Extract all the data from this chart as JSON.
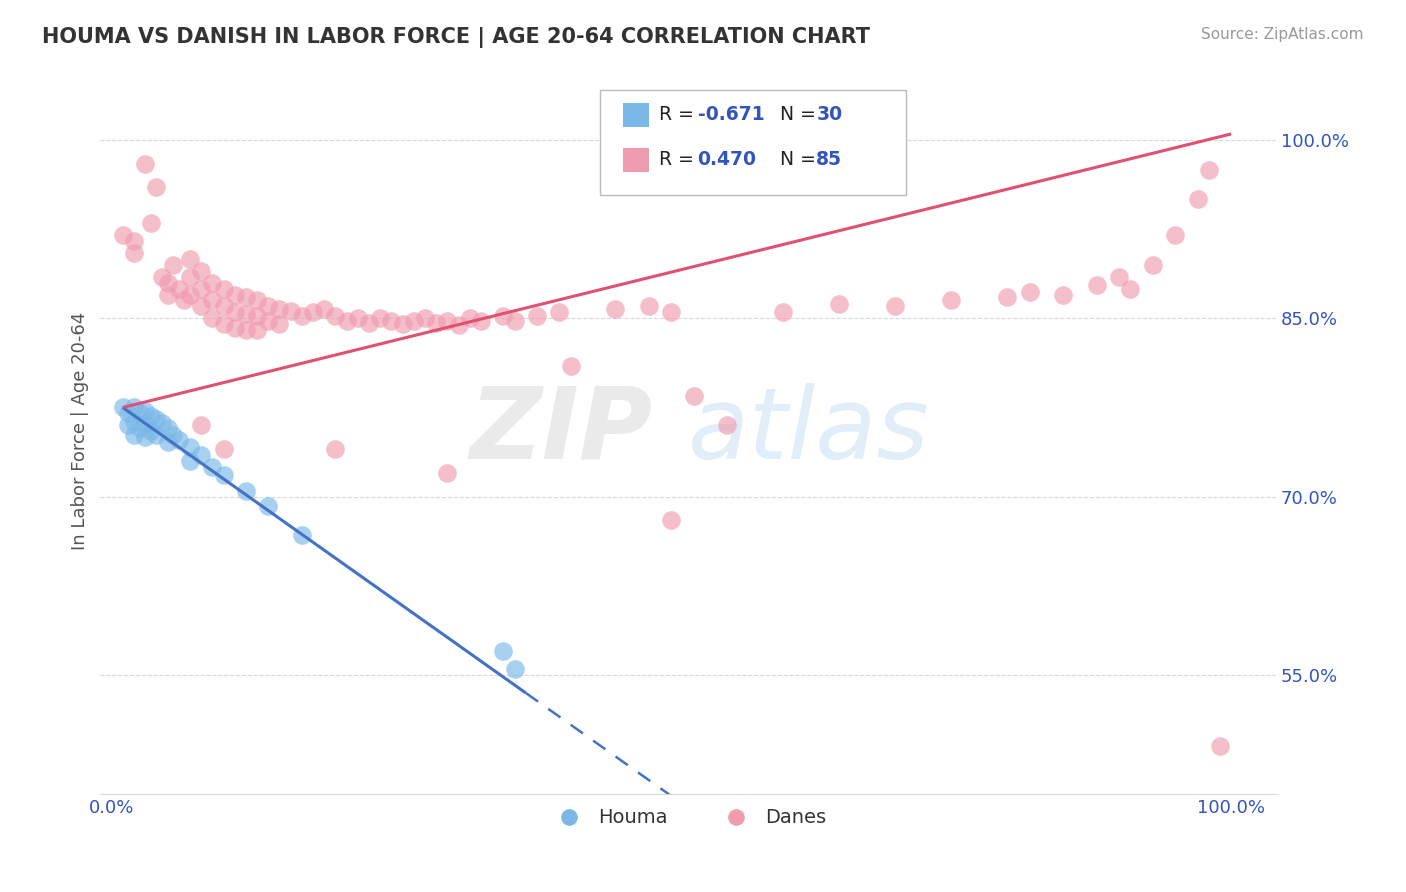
{
  "title": "HOUMA VS DANISH IN LABOR FORCE | AGE 20-64 CORRELATION CHART",
  "source": "Source: ZipAtlas.com",
  "ylabel": "In Labor Force | Age 20-64",
  "xlim": [
    -0.01,
    1.04
  ],
  "ylim": [
    0.45,
    1.06
  ],
  "xtick_positions": [
    0.0,
    0.2,
    0.4,
    0.6,
    0.8,
    1.0
  ],
  "xticklabels": [
    "0.0%",
    "",
    "",
    "",
    "",
    "100.0%"
  ],
  "ytick_positions": [
    0.55,
    0.7,
    0.85,
    1.0
  ],
  "ytick_labels": [
    "55.0%",
    "70.0%",
    "85.0%",
    "100.0%"
  ],
  "houma_r": "-0.671",
  "houma_n": "30",
  "danes_r": "0.470",
  "danes_n": "85",
  "houma_color": "#7ab8e8",
  "danes_color": "#f09cb0",
  "houma_line_color": "#4472c4",
  "danes_line_color": "#e05070",
  "text_color": "#3355bb",
  "title_color": "#333333",
  "grid_color": "#d8d8d8",
  "houma_line_x1": 0.01,
  "houma_line_y1": 0.775,
  "houma_line_x2": 0.37,
  "houma_line_y2": 0.535,
  "houma_line_dash_x2": 1.03,
  "danes_line_x1": 0.01,
  "danes_line_y1": 0.775,
  "danes_line_x2": 1.0,
  "danes_line_y2": 1.005,
  "houma_scatter": [
    [
      0.01,
      0.775
    ],
    [
      0.015,
      0.77
    ],
    [
      0.015,
      0.76
    ],
    [
      0.02,
      0.775
    ],
    [
      0.02,
      0.763
    ],
    [
      0.02,
      0.752
    ],
    [
      0.025,
      0.77
    ],
    [
      0.025,
      0.758
    ],
    [
      0.03,
      0.772
    ],
    [
      0.03,
      0.762
    ],
    [
      0.03,
      0.75
    ],
    [
      0.035,
      0.768
    ],
    [
      0.035,
      0.755
    ],
    [
      0.04,
      0.765
    ],
    [
      0.04,
      0.752
    ],
    [
      0.045,
      0.762
    ],
    [
      0.05,
      0.758
    ],
    [
      0.05,
      0.746
    ],
    [
      0.055,
      0.752
    ],
    [
      0.06,
      0.748
    ],
    [
      0.07,
      0.742
    ],
    [
      0.07,
      0.73
    ],
    [
      0.08,
      0.735
    ],
    [
      0.09,
      0.725
    ],
    [
      0.1,
      0.718
    ],
    [
      0.12,
      0.705
    ],
    [
      0.14,
      0.692
    ],
    [
      0.17,
      0.668
    ],
    [
      0.35,
      0.57
    ],
    [
      0.36,
      0.555
    ]
  ],
  "danes_scatter": [
    [
      0.01,
      0.92
    ],
    [
      0.02,
      0.915
    ],
    [
      0.02,
      0.905
    ],
    [
      0.03,
      0.98
    ],
    [
      0.035,
      0.93
    ],
    [
      0.04,
      0.96
    ],
    [
      0.045,
      0.885
    ],
    [
      0.05,
      0.88
    ],
    [
      0.05,
      0.87
    ],
    [
      0.055,
      0.895
    ],
    [
      0.06,
      0.875
    ],
    [
      0.065,
      0.865
    ],
    [
      0.07,
      0.9
    ],
    [
      0.07,
      0.885
    ],
    [
      0.07,
      0.87
    ],
    [
      0.08,
      0.89
    ],
    [
      0.08,
      0.875
    ],
    [
      0.08,
      0.86
    ],
    [
      0.09,
      0.88
    ],
    [
      0.09,
      0.865
    ],
    [
      0.09,
      0.85
    ],
    [
      0.1,
      0.875
    ],
    [
      0.1,
      0.86
    ],
    [
      0.1,
      0.845
    ],
    [
      0.11,
      0.87
    ],
    [
      0.11,
      0.855
    ],
    [
      0.11,
      0.842
    ],
    [
      0.12,
      0.868
    ],
    [
      0.12,
      0.854
    ],
    [
      0.12,
      0.84
    ],
    [
      0.13,
      0.865
    ],
    [
      0.13,
      0.852
    ],
    [
      0.13,
      0.84
    ],
    [
      0.14,
      0.86
    ],
    [
      0.14,
      0.848
    ],
    [
      0.15,
      0.858
    ],
    [
      0.15,
      0.845
    ],
    [
      0.16,
      0.856
    ],
    [
      0.17,
      0.852
    ],
    [
      0.18,
      0.855
    ],
    [
      0.19,
      0.858
    ],
    [
      0.2,
      0.852
    ],
    [
      0.21,
      0.848
    ],
    [
      0.22,
      0.85
    ],
    [
      0.23,
      0.846
    ],
    [
      0.24,
      0.85
    ],
    [
      0.25,
      0.848
    ],
    [
      0.26,
      0.845
    ],
    [
      0.27,
      0.848
    ],
    [
      0.28,
      0.85
    ],
    [
      0.29,
      0.846
    ],
    [
      0.3,
      0.848
    ],
    [
      0.31,
      0.844
    ],
    [
      0.32,
      0.85
    ],
    [
      0.33,
      0.848
    ],
    [
      0.35,
      0.852
    ],
    [
      0.36,
      0.848
    ],
    [
      0.38,
      0.852
    ],
    [
      0.4,
      0.855
    ],
    [
      0.41,
      0.81
    ],
    [
      0.45,
      0.858
    ],
    [
      0.48,
      0.86
    ],
    [
      0.5,
      0.855
    ],
    [
      0.52,
      0.785
    ],
    [
      0.55,
      0.76
    ],
    [
      0.6,
      0.855
    ],
    [
      0.65,
      0.862
    ],
    [
      0.7,
      0.86
    ],
    [
      0.75,
      0.865
    ],
    [
      0.8,
      0.868
    ],
    [
      0.82,
      0.872
    ],
    [
      0.85,
      0.87
    ],
    [
      0.88,
      0.878
    ],
    [
      0.9,
      0.885
    ],
    [
      0.91,
      0.875
    ],
    [
      0.93,
      0.895
    ],
    [
      0.95,
      0.92
    ],
    [
      0.97,
      0.95
    ],
    [
      0.98,
      0.975
    ],
    [
      0.99,
      0.49
    ],
    [
      0.5,
      0.68
    ],
    [
      0.3,
      0.72
    ],
    [
      0.2,
      0.74
    ],
    [
      0.1,
      0.74
    ],
    [
      0.08,
      0.76
    ]
  ]
}
